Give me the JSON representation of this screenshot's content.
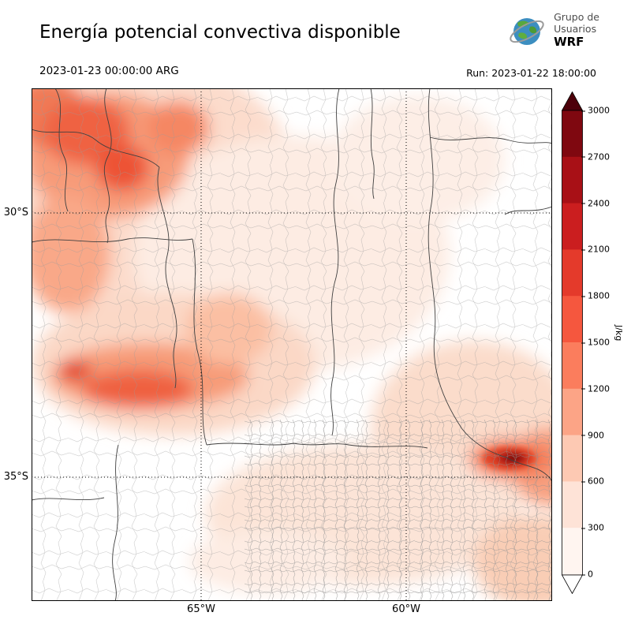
{
  "header": {
    "title": "Energía potencial convectiva disponible",
    "valid_time": "2023-01-23 00:00:00 ARG",
    "run_label": "Run: 2023-01-22 18:00:00",
    "logo": {
      "line1": "Grupo de",
      "line2": "Usuarios",
      "line3": "WRF"
    }
  },
  "map": {
    "lat_ticks": [
      "30°S",
      "35°S"
    ],
    "lon_ticks": [
      "65°W",
      "60°W"
    ]
  },
  "colorbar": {
    "units": "J/kg",
    "ticks": [
      0,
      300,
      600,
      900,
      1200,
      1500,
      1800,
      2100,
      2400,
      2700,
      3000
    ],
    "colors_low_to_high": [
      "#fff5f0",
      "#fee3d7",
      "#fdc9b3",
      "#fca486",
      "#fb7d5d",
      "#f5573e",
      "#e43a2b",
      "#cb1e1f",
      "#a81016",
      "#7f0810"
    ],
    "over_color": "#4d000a",
    "under_color": "#ffffff"
  },
  "chart_data": {
    "type": "heatmap",
    "title": "Energía potencial convectiva disponible",
    "units": "J/kg",
    "scale_ticks": [
      0,
      300,
      600,
      900,
      1200,
      1500,
      1800,
      2100,
      2400,
      2700,
      3000
    ],
    "lat_ticks": [
      "30°S",
      "35°S"
    ],
    "lon_ticks": [
      "65°W",
      "60°W"
    ],
    "notable_features": [
      {
        "region": "northwest sector (sierras/Andes foothills)",
        "approx_value_jkg": "600-1500"
      },
      {
        "region": "west-central band near 32°S",
        "approx_value_jkg": "600-1500"
      },
      {
        "region": "local maximum near Río de la Plata (~35°S, 57.5°W)",
        "approx_value_jkg": "1800-3000"
      },
      {
        "region": "central and southwestern plains",
        "approx_value_jkg": "0-300"
      }
    ]
  }
}
